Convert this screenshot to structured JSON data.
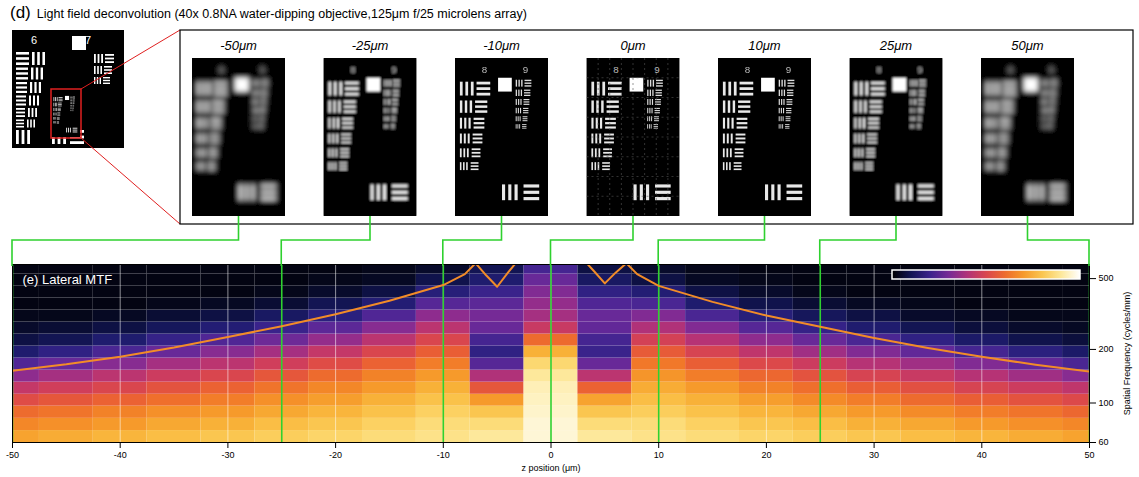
{
  "panel_d": {
    "letter": "(d)",
    "title": "Light field deconvolution (40x 0.8NA water-dipping objective,125μm f/25 microlens array)",
    "overview_groups": [
      "6",
      "7"
    ],
    "zoom_groups": [
      "8",
      "9"
    ],
    "images": [
      {
        "z": -50,
        "label": "-50μm"
      },
      {
        "z": -25,
        "label": "-25μm"
      },
      {
        "z": -10,
        "label": "-10μm"
      },
      {
        "z": 0,
        "label": "0μm"
      },
      {
        "z": 10,
        "label": "10μm"
      },
      {
        "z": 25,
        "label": "25μm"
      },
      {
        "z": 50,
        "label": "50μm"
      }
    ]
  },
  "chart_data": {
    "type": "heatmap",
    "letter": "(e)",
    "title": "Lateral MTF",
    "x_label": "z position (μm)",
    "y_label": "Spatial Frequency (cycles/mm)",
    "xlim": [
      -50,
      50
    ],
    "xticks": [
      -50,
      -40,
      -30,
      -20,
      -10,
      0,
      10,
      20,
      30,
      40,
      50
    ],
    "ylim": [
      60,
      600
    ],
    "yticks": [
      60,
      100,
      200,
      500
    ],
    "log": "y",
    "grid": true,
    "color_range": [
      0,
      1
    ],
    "z": [
      -50,
      -45,
      -40,
      -35,
      -30,
      -25,
      -20,
      -15,
      -10,
      -5,
      0,
      5,
      10,
      15,
      20,
      25,
      30,
      35,
      40,
      45,
      50
    ],
    "frequency_edges": [
      60,
      70,
      82,
      96,
      112,
      131,
      153,
      179,
      209,
      244,
      285,
      333,
      389,
      455,
      531,
      600
    ],
    "values": [
      [
        0.72,
        0.66,
        0.6,
        0.52,
        0.44,
        0.34,
        0.24,
        0.14,
        0.08,
        0.05,
        0.03,
        0.02,
        0.02,
        0.02,
        0.02
      ],
      [
        0.74,
        0.68,
        0.62,
        0.55,
        0.47,
        0.38,
        0.28,
        0.18,
        0.1,
        0.06,
        0.03,
        0.02,
        0.02,
        0.02,
        0.02
      ],
      [
        0.76,
        0.7,
        0.65,
        0.58,
        0.5,
        0.42,
        0.33,
        0.23,
        0.14,
        0.08,
        0.04,
        0.02,
        0.02,
        0.02,
        0.02
      ],
      [
        0.78,
        0.73,
        0.68,
        0.61,
        0.54,
        0.46,
        0.38,
        0.28,
        0.19,
        0.11,
        0.06,
        0.03,
        0.02,
        0.02,
        0.02
      ],
      [
        0.8,
        0.75,
        0.7,
        0.64,
        0.58,
        0.5,
        0.42,
        0.33,
        0.24,
        0.15,
        0.08,
        0.04,
        0.02,
        0.02,
        0.02
      ],
      [
        0.82,
        0.78,
        0.73,
        0.68,
        0.62,
        0.55,
        0.47,
        0.38,
        0.29,
        0.2,
        0.12,
        0.06,
        0.03,
        0.02,
        0.02
      ],
      [
        0.84,
        0.8,
        0.76,
        0.71,
        0.66,
        0.6,
        0.52,
        0.44,
        0.35,
        0.26,
        0.17,
        0.1,
        0.05,
        0.03,
        0.02
      ],
      [
        0.86,
        0.83,
        0.79,
        0.75,
        0.7,
        0.65,
        0.58,
        0.5,
        0.42,
        0.33,
        0.24,
        0.15,
        0.08,
        0.04,
        0.03
      ],
      [
        0.88,
        0.86,
        0.83,
        0.79,
        0.75,
        0.7,
        0.64,
        0.57,
        0.5,
        0.42,
        0.34,
        0.25,
        0.16,
        0.09,
        0.05
      ],
      [
        0.9,
        0.86,
        0.8,
        0.7,
        0.55,
        0.4,
        0.25,
        0.18,
        0.22,
        0.28,
        0.3,
        0.26,
        0.2,
        0.14,
        0.1
      ],
      [
        0.96,
        0.96,
        0.95,
        0.94,
        0.93,
        0.9,
        0.85,
        0.75,
        0.6,
        0.45,
        0.38,
        0.35,
        0.32,
        0.28,
        0.22
      ],
      [
        0.9,
        0.86,
        0.8,
        0.72,
        0.58,
        0.42,
        0.28,
        0.2,
        0.22,
        0.27,
        0.28,
        0.24,
        0.18,
        0.12,
        0.08
      ],
      [
        0.88,
        0.86,
        0.82,
        0.78,
        0.74,
        0.69,
        0.63,
        0.56,
        0.48,
        0.4,
        0.32,
        0.23,
        0.15,
        0.08,
        0.05
      ],
      [
        0.86,
        0.83,
        0.79,
        0.75,
        0.7,
        0.64,
        0.57,
        0.49,
        0.41,
        0.32,
        0.23,
        0.14,
        0.08,
        0.04,
        0.03
      ],
      [
        0.84,
        0.8,
        0.76,
        0.71,
        0.65,
        0.59,
        0.51,
        0.43,
        0.34,
        0.25,
        0.16,
        0.09,
        0.05,
        0.03,
        0.02
      ],
      [
        0.82,
        0.78,
        0.73,
        0.67,
        0.61,
        0.54,
        0.46,
        0.37,
        0.28,
        0.19,
        0.11,
        0.06,
        0.03,
        0.02,
        0.02
      ],
      [
        0.8,
        0.75,
        0.7,
        0.64,
        0.57,
        0.49,
        0.41,
        0.32,
        0.23,
        0.14,
        0.08,
        0.04,
        0.02,
        0.02,
        0.02
      ],
      [
        0.78,
        0.73,
        0.67,
        0.6,
        0.53,
        0.45,
        0.37,
        0.27,
        0.18,
        0.1,
        0.05,
        0.03,
        0.02,
        0.02,
        0.02
      ],
      [
        0.76,
        0.7,
        0.64,
        0.57,
        0.49,
        0.41,
        0.32,
        0.22,
        0.13,
        0.07,
        0.04,
        0.02,
        0.02,
        0.02,
        0.02
      ],
      [
        0.74,
        0.68,
        0.62,
        0.54,
        0.46,
        0.37,
        0.27,
        0.17,
        0.09,
        0.05,
        0.03,
        0.02,
        0.02,
        0.02,
        0.02
      ],
      [
        0.72,
        0.66,
        0.59,
        0.51,
        0.43,
        0.33,
        0.23,
        0.13,
        0.07,
        0.04,
        0.03,
        0.02,
        0.02,
        0.02,
        0.02
      ]
    ],
    "line": {
      "color": "#f28c28",
      "z": [
        -50,
        -45,
        -40,
        -35,
        -30,
        -25,
        -20,
        -15,
        -10,
        -8,
        -7,
        -6,
        -5,
        -4,
        -3,
        3,
        4,
        5,
        6,
        7,
        8,
        10,
        15,
        20,
        25,
        30,
        35,
        40,
        45,
        50
      ],
      "frequency": [
        152,
        165,
        182,
        205,
        235,
        270,
        315,
        375,
        460,
        530,
        610,
        520,
        450,
        540,
        640,
        640,
        550,
        470,
        540,
        610,
        530,
        455,
        370,
        310,
        268,
        232,
        204,
        182,
        164,
        150
      ]
    }
  }
}
